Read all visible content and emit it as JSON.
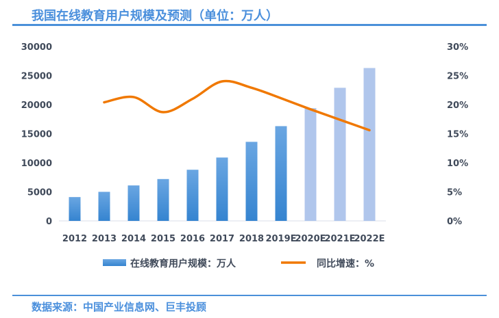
{
  "title": "我国在线教育用户规模及预测（单位：万人）",
  "source": "数据来源：中国产业信息网、巨丰投顾",
  "colors": {
    "title": "#4a8fdc",
    "bar_actual_top": "#6aa6e2",
    "bar_actual_bottom": "#3584d0",
    "bar_forecast": "#b0c6ec",
    "line": "#f07800"
  },
  "chart_data": {
    "type": "bar+line",
    "categories": [
      "2012",
      "2013",
      "2014",
      "2015",
      "2016",
      "2017",
      "2018",
      "2019E",
      "2020E",
      "2021E",
      "2022E"
    ],
    "series": [
      {
        "name": "在线教育用户规模：万人",
        "type": "bar",
        "axis": "left",
        "values": [
          4100,
          5000,
          6100,
          7200,
          8800,
          10900,
          13600,
          16300,
          19400,
          22900,
          26300
        ],
        "forecast_from_index": 8
      },
      {
        "name": "同比增速：%",
        "type": "line",
        "axis": "right",
        "values": [
          null,
          20.4,
          21.3,
          18.7,
          21.0,
          24.0,
          22.9,
          21.1,
          19.2,
          17.4,
          15.6
        ]
      }
    ],
    "left_axis": {
      "ylim": [
        0,
        30000
      ],
      "ticks": [
        "0",
        "5000",
        "10000",
        "15000",
        "20000",
        "25000",
        "30000"
      ]
    },
    "right_axis": {
      "ylim": [
        0,
        30
      ],
      "ticks": [
        "0%",
        "5%",
        "10%",
        "15%",
        "20%",
        "25%",
        "30%"
      ]
    },
    "legend": {
      "position": "bottom",
      "entries": [
        "在线教育用户规模：万人",
        "同比增速：%"
      ]
    },
    "grid": false
  }
}
